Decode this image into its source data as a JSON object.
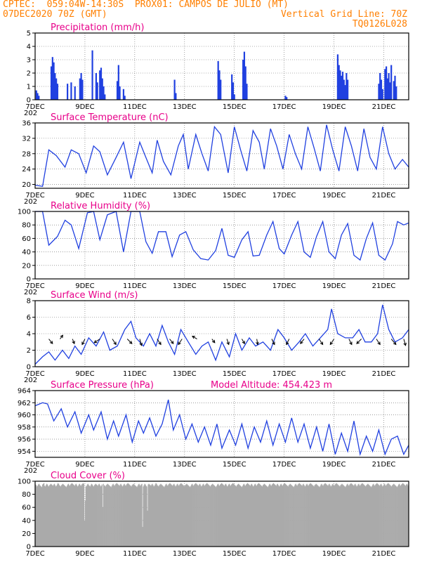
{
  "header": {
    "line1_left": "CPTEC:  059:04W-14:30S  PROX01: CAMPOS DE JULIO (MT)",
    "line2_left": "07DEC2020 70Z (GMT)",
    "line2_right": "Vertical Grid Line: 70Z",
    "line3_right": "TQ0126L028"
  },
  "colors": {
    "header": "#ff7f00",
    "title": "#e8008a",
    "series": "#2040e0",
    "cloud": "#aaaaaa",
    "frame": "#000000"
  },
  "x_axis": {
    "domain_days": [
      7,
      22
    ],
    "ticks": [
      {
        "day": 7,
        "label": "7DEC"
      },
      {
        "day": 9,
        "label": "9DEC"
      },
      {
        "day": 11,
        "label": "11DEC"
      },
      {
        "day": 13,
        "label": "13DEC"
      },
      {
        "day": 15,
        "label": "15DEC"
      },
      {
        "day": 17,
        "label": "17DEC"
      },
      {
        "day": 19,
        "label": "19DEC"
      },
      {
        "day": 21,
        "label": "21DEC"
      }
    ],
    "corner_label": "202"
  },
  "chart_data": [
    {
      "type": "bar",
      "title": "Precipitation (mm/h)",
      "ylim": [
        0,
        5
      ],
      "yticks": [
        "0",
        "1",
        "2",
        "3",
        "4",
        "5"
      ],
      "x": [
        7.05,
        7.1,
        7.15,
        7.65,
        7.7,
        7.75,
        7.8,
        7.85,
        7.9,
        8.3,
        8.45,
        8.6,
        8.8,
        8.85,
        8.9,
        9.3,
        9.45,
        9.5,
        9.6,
        9.65,
        9.7,
        9.75,
        9.8,
        10.3,
        10.35,
        10.4,
        10.55,
        10.6,
        12.6,
        12.65,
        14.35,
        14.4,
        14.45,
        14.9,
        14.95,
        15.0,
        15.35,
        15.4,
        15.45,
        15.5,
        17.05,
        17.1,
        19.15,
        19.2,
        19.25,
        19.3,
        19.35,
        19.4,
        19.45,
        19.5,
        19.55,
        20.8,
        20.85,
        20.9,
        20.95,
        21.05,
        21.1,
        21.15,
        21.2,
        21.25,
        21.3,
        21.4,
        21.45,
        21.5
      ],
      "values": [
        0.7,
        0.5,
        0.3,
        2.5,
        3.2,
        2.8,
        2.0,
        1.6,
        1.2,
        1.2,
        1.3,
        1.0,
        1.6,
        2.0,
        1.5,
        3.7,
        2.0,
        1.3,
        2.2,
        2.4,
        1.6,
        1.0,
        0.4,
        1.4,
        2.6,
        1.0,
        0.8,
        0.3,
        1.5,
        0.5,
        2.9,
        2.2,
        1.5,
        1.9,
        1.3,
        0.4,
        3.0,
        3.6,
        2.5,
        1.2,
        0.3,
        0.2,
        3.4,
        2.6,
        2.2,
        1.8,
        2.1,
        1.5,
        1.1,
        2.0,
        1.5,
        1.2,
        2.0,
        1.5,
        0.8,
        2.3,
        2.5,
        1.6,
        2.0,
        1.3,
        2.6,
        1.4,
        1.8,
        1.0
      ]
    },
    {
      "type": "line",
      "title": "Surface Temperature (nC)",
      "ylim": [
        19,
        36
      ],
      "yticks": [
        "20",
        "24",
        "28",
        "32",
        "36"
      ],
      "x": [
        7.0,
        7.3,
        7.55,
        7.85,
        8.2,
        8.45,
        8.75,
        9.05,
        9.35,
        9.6,
        9.9,
        10.25,
        10.55,
        10.85,
        11.2,
        11.45,
        11.7,
        11.9,
        12.15,
        12.45,
        12.75,
        12.95,
        13.15,
        13.45,
        13.7,
        13.95,
        14.2,
        14.45,
        14.75,
        15.0,
        15.25,
        15.5,
        15.75,
        16.0,
        16.2,
        16.45,
        16.7,
        16.95,
        17.2,
        17.45,
        17.7,
        17.95,
        18.2,
        18.45,
        18.7,
        18.95,
        19.2,
        19.45,
        19.7,
        19.95,
        20.2,
        20.45,
        20.7,
        20.95,
        21.2,
        21.45,
        21.75,
        22.0
      ],
      "values": [
        19.8,
        19.5,
        29.0,
        27.5,
        24.5,
        29.0,
        28.0,
        23.0,
        30.0,
        28.5,
        22.5,
        27.0,
        31.0,
        21.5,
        31.0,
        27.0,
        23.0,
        31.5,
        26.0,
        22.5,
        30.0,
        33.0,
        24.0,
        33.0,
        28.0,
        23.5,
        35.0,
        33.0,
        23.0,
        35.0,
        29.0,
        23.5,
        34.0,
        31.0,
        24.0,
        34.5,
        30.0,
        24.0,
        33.0,
        28.0,
        24.0,
        35.0,
        29.5,
        23.5,
        35.5,
        29.0,
        23.5,
        35.0,
        30.0,
        23.5,
        34.5,
        27.0,
        24.0,
        35.0,
        28.0,
        24.0,
        26.5,
        24.5
      ]
    },
    {
      "type": "line",
      "title": "Relative Humidity (%)",
      "ylim": [
        0,
        100
      ],
      "yticks": [
        "0",
        "20",
        "40",
        "60",
        "80",
        "100"
      ],
      "x": [
        7.0,
        7.3,
        7.55,
        7.9,
        8.2,
        8.45,
        8.75,
        9.1,
        9.35,
        9.6,
        9.9,
        10.25,
        10.55,
        10.85,
        11.2,
        11.45,
        11.7,
        11.95,
        12.25,
        12.5,
        12.8,
        13.05,
        13.35,
        13.65,
        13.95,
        14.25,
        14.5,
        14.75,
        15.0,
        15.3,
        15.55,
        15.75,
        16.0,
        16.3,
        16.55,
        16.8,
        17.0,
        17.3,
        17.55,
        17.8,
        18.05,
        18.3,
        18.55,
        18.8,
        19.05,
        19.3,
        19.55,
        19.8,
        20.05,
        20.3,
        20.55,
        20.8,
        21.05,
        21.35,
        21.55,
        21.8,
        22.0
      ],
      "values": [
        100,
        100,
        50,
        63,
        87,
        80,
        45,
        98,
        100,
        58,
        95,
        100,
        40,
        100,
        100,
        55,
        38,
        70,
        70,
        33,
        65,
        70,
        43,
        30,
        28,
        42,
        75,
        35,
        32,
        58,
        70,
        34,
        35,
        65,
        85,
        45,
        37,
        65,
        85,
        40,
        32,
        63,
        85,
        40,
        30,
        65,
        82,
        35,
        28,
        60,
        83,
        35,
        28,
        52,
        85,
        80,
        83
      ]
    },
    {
      "type": "line",
      "title": "Surface Wind (m/s)",
      "ylim": [
        0,
        8
      ],
      "yticks": [
        "0",
        "2",
        "4",
        "6",
        "8"
      ],
      "x": [
        7.0,
        7.3,
        7.55,
        7.8,
        8.1,
        8.35,
        8.6,
        8.85,
        9.15,
        9.45,
        9.75,
        10.0,
        10.3,
        10.6,
        10.85,
        11.05,
        11.35,
        11.6,
        11.85,
        12.1,
        12.35,
        12.6,
        12.85,
        13.15,
        13.45,
        13.7,
        13.95,
        14.25,
        14.5,
        14.8,
        15.05,
        15.3,
        15.6,
        15.85,
        16.15,
        16.45,
        16.75,
        17.0,
        17.3,
        17.6,
        17.85,
        18.15,
        18.45,
        18.75,
        18.9,
        19.15,
        19.45,
        19.75,
        20.0,
        20.25,
        20.5,
        20.75,
        20.95,
        21.2,
        21.45,
        21.75,
        22.0
      ],
      "values": [
        0.3,
        1.2,
        1.8,
        0.8,
        2.0,
        1.0,
        2.5,
        1.5,
        3.5,
        2.5,
        4.2,
        2.0,
        2.5,
        4.5,
        5.5,
        3.5,
        2.5,
        4.0,
        2.5,
        5.0,
        3.0,
        1.5,
        4.5,
        3.0,
        1.5,
        2.5,
        3.0,
        0.8,
        3.0,
        1.2,
        4.0,
        2.0,
        3.5,
        2.5,
        3.0,
        2.0,
        4.5,
        3.5,
        2.0,
        3.0,
        4.0,
        2.5,
        3.5,
        4.5,
        7.0,
        4.0,
        3.5,
        3.5,
        4.5,
        3.0,
        3.0,
        4.0,
        7.5,
        4.5,
        3.0,
        3.5,
        4.5
      ],
      "arrows": [
        {
          "x": 7.55,
          "dx": 0.4,
          "dy": -0.5
        },
        {
          "x": 8.0,
          "dx": 0.3,
          "dy": 0.4
        },
        {
          "x": 8.5,
          "dx": 0.2,
          "dy": -0.5
        },
        {
          "x": 9.0,
          "dx": -0.3,
          "dy": -0.6
        },
        {
          "x": 9.6,
          "dx": -0.6,
          "dy": -0.4
        },
        {
          "x": 10.1,
          "dx": 0.4,
          "dy": -0.6
        },
        {
          "x": 10.7,
          "dx": 0.5,
          "dy": -0.5
        },
        {
          "x": 11.2,
          "dx": 0.2,
          "dy": -0.7
        },
        {
          "x": 11.9,
          "dx": 0.4,
          "dy": -0.6
        },
        {
          "x": 12.4,
          "dx": 0.4,
          "dy": -0.5
        },
        {
          "x": 12.9,
          "dx": -0.4,
          "dy": -0.6
        },
        {
          "x": 13.5,
          "dx": -0.5,
          "dy": 0.3
        },
        {
          "x": 14.1,
          "dx": 0.3,
          "dy": -0.4
        },
        {
          "x": 14.7,
          "dx": 0.2,
          "dy": -0.6
        },
        {
          "x": 15.3,
          "dx": 0.3,
          "dy": -0.5
        },
        {
          "x": 15.9,
          "dx": 0.1,
          "dy": -0.6
        },
        {
          "x": 16.5,
          "dx": 0.3,
          "dy": -0.6
        },
        {
          "x": 17.2,
          "dx": -0.3,
          "dy": -0.6
        },
        {
          "x": 17.8,
          "dx": -0.4,
          "dy": -0.5
        },
        {
          "x": 18.4,
          "dx": 0.4,
          "dy": -0.6
        },
        {
          "x": 19.0,
          "dx": -0.4,
          "dy": -0.6
        },
        {
          "x": 19.6,
          "dx": 0.3,
          "dy": -0.6
        },
        {
          "x": 20.1,
          "dx": -0.5,
          "dy": -0.5
        },
        {
          "x": 20.7,
          "dx": 0.4,
          "dy": -0.6
        },
        {
          "x": 21.3,
          "dx": 0.5,
          "dy": -0.6
        },
        {
          "x": 21.8,
          "dx": 0.2,
          "dy": -0.7
        }
      ]
    },
    {
      "type": "line",
      "title": "Surface Pressure (hPa)",
      "subtitle": "Model Altitude: 454.423 m",
      "ylim": [
        953,
        964
      ],
      "yticks": [
        "954",
        "956",
        "958",
        "960",
        "962",
        "964"
      ],
      "x": [
        7.0,
        7.3,
        7.5,
        7.75,
        8.05,
        8.3,
        8.6,
        8.85,
        9.15,
        9.35,
        9.65,
        9.9,
        10.15,
        10.35,
        10.65,
        10.9,
        11.15,
        11.35,
        11.6,
        11.85,
        12.1,
        12.35,
        12.55,
        12.8,
        13.05,
        13.3,
        13.55,
        13.8,
        14.05,
        14.3,
        14.5,
        14.8,
        15.05,
        15.3,
        15.55,
        15.8,
        16.05,
        16.3,
        16.55,
        16.8,
        17.05,
        17.3,
        17.55,
        17.8,
        18.05,
        18.3,
        18.55,
        18.8,
        19.05,
        19.3,
        19.55,
        19.8,
        20.05,
        20.3,
        20.55,
        20.8,
        21.05,
        21.3,
        21.55,
        21.8,
        22.0
      ],
      "values": [
        961.5,
        962.0,
        961.8,
        959.0,
        961.0,
        958.0,
        960.5,
        957.0,
        960.0,
        957.5,
        960.5,
        956.0,
        959.0,
        956.5,
        960.0,
        955.5,
        959.0,
        957.0,
        959.5,
        956.5,
        958.5,
        962.5,
        957.5,
        960.0,
        956.0,
        958.5,
        955.5,
        958.0,
        955.0,
        958.5,
        954.5,
        957.5,
        955.0,
        958.5,
        954.5,
        958.0,
        955.5,
        959.0,
        955.0,
        958.5,
        955.5,
        959.5,
        955.5,
        958.5,
        954.5,
        958.0,
        954.0,
        958.5,
        953.5,
        957.0,
        954.0,
        959.0,
        953.5,
        956.5,
        954.0,
        957.5,
        953.5,
        956.0,
        956.5,
        953.5,
        955.0
      ]
    },
    {
      "type": "bar",
      "title": "Cloud Cover (%)",
      "ylim": [
        0,
        100
      ],
      "yticks": [
        "0",
        "20",
        "40",
        "60",
        "80",
        "100"
      ],
      "values": [
        95,
        94,
        92,
        93,
        95,
        96,
        94,
        93,
        92,
        91,
        95,
        96,
        97,
        93,
        92,
        94,
        96,
        95,
        93,
        92,
        94,
        95,
        96,
        95,
        94,
        93,
        95,
        96,
        94,
        92,
        93,
        95,
        97,
        96,
        94,
        93,
        92,
        94,
        95,
        96,
        95,
        94,
        93,
        92,
        91,
        93,
        95,
        96,
        94,
        93,
        95,
        96,
        97,
        96,
        95,
        94,
        93,
        95,
        96,
        94,
        92,
        93,
        95,
        96,
        94,
        93,
        95,
        96,
        97,
        96,
        40,
        70,
        92,
        93,
        95,
        96,
        94,
        93,
        92,
        94,
        96,
        95,
        93,
        92,
        94,
        95,
        96,
        95,
        94,
        93,
        95,
        96,
        94,
        92,
        93,
        95,
        60,
        96,
        94,
        93,
        92,
        94,
        95,
        96,
        95,
        94,
        93,
        92,
        91,
        93,
        95,
        96,
        94,
        93,
        95,
        96,
        97,
        96,
        95,
        94,
        93,
        95,
        96,
        94,
        92,
        93,
        95,
        96,
        94,
        93,
        95,
        96,
        97,
        96,
        95,
        94,
        93,
        92,
        94,
        95,
        96,
        95,
        94,
        93,
        92,
        91,
        93,
        95,
        96,
        94,
        93,
        95,
        96,
        30,
        92,
        94,
        96,
        95,
        93,
        92,
        55,
        95,
        96,
        95,
        94,
        93,
        95,
        96,
        94,
        92,
        93,
        95,
        97,
        96,
        94,
        93,
        92,
        94,
        95,
        96,
        95,
        94,
        93,
        92,
        91,
        93,
        95,
        96,
        94,
        93,
        95,
        96,
        97,
        96,
        95,
        94,
        93,
        95,
        96,
        94,
        92,
        93,
        95,
        96,
        94,
        93,
        95,
        96,
        97,
        96,
        95,
        94,
        93,
        92,
        94,
        95,
        96,
        95,
        94,
        93,
        92,
        91,
        93,
        95,
        96,
        94,
        93,
        95,
        96,
        97,
        96,
        95,
        94,
        93,
        95,
        96,
        94,
        92,
        93,
        95,
        96,
        94,
        93,
        95,
        96,
        97,
        96,
        95,
        94,
        93,
        92,
        94,
        95,
        96,
        95,
        94,
        93,
        92,
        91,
        93,
        95,
        96,
        94,
        93,
        95,
        96,
        97,
        96,
        95,
        94,
        93,
        95,
        96,
        94,
        92,
        93,
        95,
        96,
        94,
        93,
        95,
        96,
        97,
        96,
        95,
        94,
        93,
        92,
        94,
        95,
        96,
        95,
        94,
        93,
        92,
        91,
        93,
        95,
        96,
        94,
        93,
        95,
        96,
        97,
        96,
        95,
        94,
        93,
        95,
        96,
        94,
        92,
        93,
        95,
        96,
        94,
        93,
        95,
        96,
        97,
        96,
        95,
        94,
        93,
        92,
        94,
        95,
        96,
        95,
        94,
        93,
        92,
        91,
        93,
        95,
        96,
        94,
        93,
        95,
        96,
        97,
        96,
        95,
        94,
        93,
        95,
        96,
        94,
        92,
        93,
        95,
        96,
        94,
        93,
        95,
        96,
        97,
        96,
        95,
        94,
        93,
        92,
        94,
        95,
        96,
        95,
        94,
        93,
        92,
        91,
        93,
        95,
        96,
        94,
        93,
        95,
        96,
        97,
        96,
        95,
        94,
        93,
        95,
        96,
        94,
        92,
        93,
        95,
        96,
        94,
        93,
        95,
        96,
        97,
        96,
        95,
        94,
        93,
        92,
        94,
        95,
        96,
        95,
        94,
        93,
        92,
        91,
        93,
        95,
        96,
        94,
        93,
        95,
        96,
        97,
        96,
        95,
        94,
        93,
        95,
        96,
        94,
        92,
        93,
        95,
        96,
        94,
        93,
        95,
        96,
        97,
        96,
        95,
        94,
        93,
        92,
        94,
        95,
        96,
        95,
        94,
        93,
        92,
        91,
        93,
        95,
        96,
        94,
        93,
        95,
        96,
        97,
        96,
        95,
        94,
        93,
        95,
        96,
        94,
        92,
        93,
        95,
        96,
        94,
        93,
        95,
        96,
        97,
        96,
        95,
        94,
        93,
        92,
        94,
        95,
        96,
        95,
        94,
        93,
        92,
        91,
        93,
        95,
        96,
        94,
        93,
        95,
        96,
        97,
        96,
        95,
        94,
        93,
        95,
        96,
        94,
        92,
        93,
        95,
        96,
        94,
        93,
        95,
        96,
        97,
        96,
        95,
        94,
        93,
        92,
        94,
        95,
        96,
        95,
        94,
        93,
        92,
        91,
        93,
        95,
        96,
        94,
        93,
        95,
        96,
        97,
        96,
        95,
        94,
        93,
        95,
        96,
        94,
        92
      ]
    }
  ]
}
